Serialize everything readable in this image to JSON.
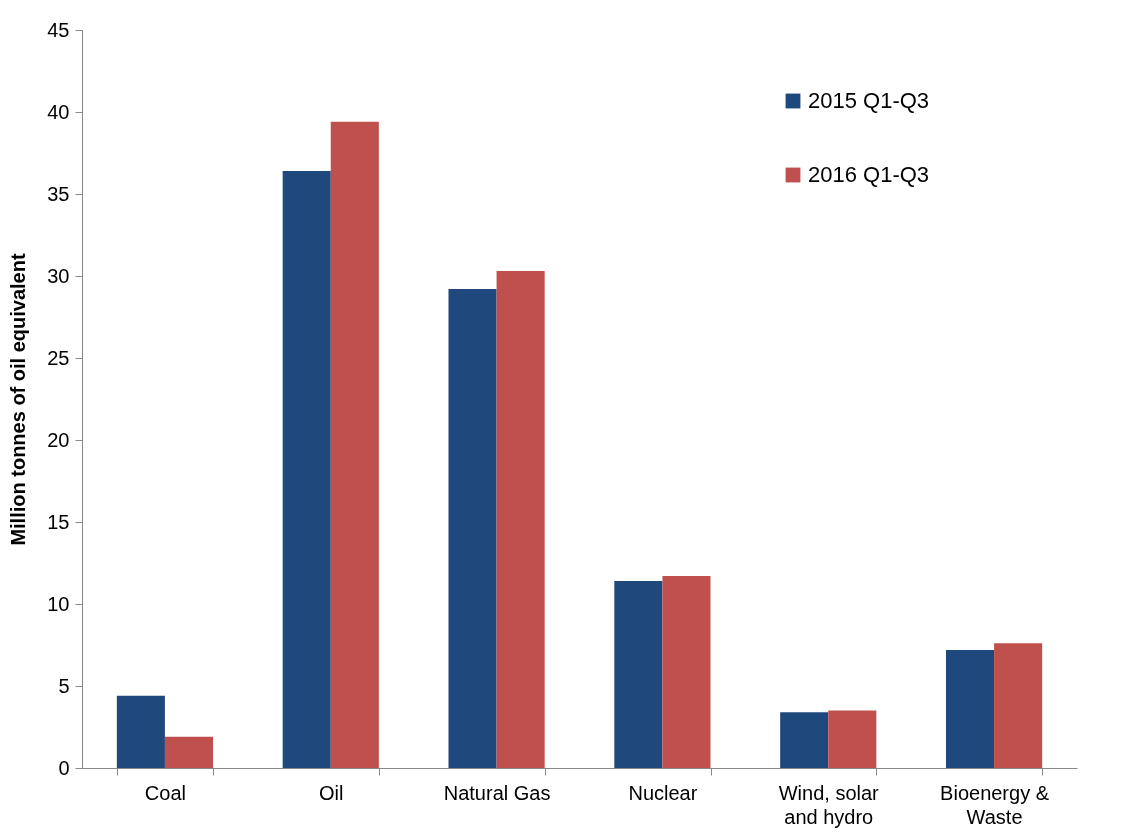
{
  "chart_data": {
    "type": "bar",
    "ylabel": "Million tonnes of oil equivalent",
    "categories": [
      "Coal",
      "Oil",
      "Natural Gas",
      "Nuclear",
      "Wind, solar and hydro",
      "Bioenergy & Waste"
    ],
    "series": [
      {
        "name": "2015 Q1-Q3",
        "color": "#1f497d",
        "values": [
          4.4,
          36.4,
          29.2,
          11.4,
          3.4,
          7.2
        ]
      },
      {
        "name": "2016 Q1-Q3",
        "color": "#c0504d",
        "values": [
          1.9,
          39.4,
          30.3,
          11.7,
          3.5,
          7.6
        ]
      }
    ],
    "ylim": [
      0,
      45
    ],
    "yticks": [
      0,
      5,
      10,
      15,
      20,
      25,
      30,
      35,
      40,
      45
    ],
    "grid": false,
    "legend": "top right"
  }
}
